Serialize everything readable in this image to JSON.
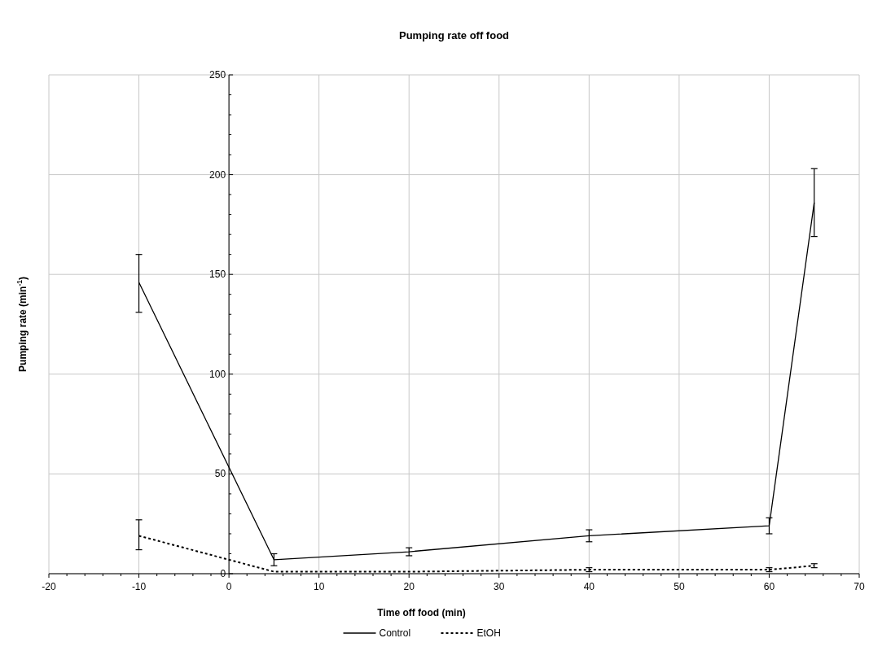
{
  "chart_data": {
    "type": "line",
    "title": "Pumping rate off food",
    "xlabel": "Time off food (min)",
    "ylabel": "Pumping rate (min$^{-1}$)",
    "x": [
      -10,
      5,
      20,
      40,
      60,
      65
    ],
    "series": [
      {
        "name": "Control",
        "color": "#000000",
        "values": [
          146,
          7,
          11,
          19,
          24,
          186
        ],
        "errors": [
          [
            131,
            160
          ],
          3,
          2,
          3,
          4,
          [
            169,
            203
          ]
        ],
        "line_style": "solid"
      },
      {
        "name": "EtOH",
        "color": "#000000",
        "values": [
          19,
          1,
          1,
          2,
          2,
          4
        ],
        "errors": [
          [
            12,
            27
          ],
          null,
          null,
          1,
          1,
          1
        ],
        "line_style": "dotted"
      }
    ],
    "xlim": [
      -20,
      70
    ],
    "xticks": [
      -20,
      {
        "value": -18,
        "label": null
      },
      {
        "value": -16,
        "label": null
      },
      {
        "value": -14,
        "label": null
      },
      {
        "value": -12,
        "label": null
      },
      -10,
      {
        "value": -8,
        "label": null
      },
      {
        "value": -6,
        "label": null
      },
      {
        "value": -4,
        "label": null
      },
      {
        "value": -2,
        "label": null
      },
      0,
      {
        "value": 2,
        "label": null
      },
      {
        "value": 4,
        "label": null
      },
      {
        "value": 6,
        "label": null
      },
      {
        "value": 8,
        "label": null
      },
      10,
      {
        "value": 12,
        "label": null
      },
      {
        "value": 14,
        "label": null
      },
      {
        "value": 16,
        "label": null
      },
      {
        "value": 18,
        "label": null
      },
      20,
      {
        "value": 22,
        "label": null
      },
      {
        "value": 24,
        "label": null
      },
      {
        "value": 26,
        "label": null
      },
      {
        "value": 28,
        "label": null
      },
      30,
      {
        "value": 32,
        "label": null
      },
      {
        "value": 34,
        "label": null
      },
      {
        "value": 36,
        "label": null
      },
      {
        "value": 38,
        "label": null
      },
      40,
      {
        "value": 42,
        "label": null
      },
      {
        "value": 44,
        "label": null
      },
      {
        "value": 46,
        "label": null
      },
      {
        "value": 48,
        "label": null
      },
      50,
      {
        "value": 52,
        "label": null
      },
      {
        "value": 54,
        "label": null
      },
      {
        "value": 56,
        "label": null
      },
      {
        "value": 58,
        "label": null
      },
      60,
      {
        "value": 62,
        "label": null
      },
      {
        "value": 64,
        "label": null
      },
      {
        "value": 66,
        "label": null
      },
      {
        "value": 68,
        "label": null
      },
      70
    ],
    "ylim": [
      0,
      250
    ],
    "yticks": [
      0,
      {
        "value": 10,
        "label": null
      },
      {
        "value": 20,
        "label": null
      },
      {
        "value": 30,
        "label": null
      },
      {
        "value": 40,
        "label": null
      },
      50,
      {
        "value": 60,
        "label": null
      },
      {
        "value": 70,
        "label": null
      },
      {
        "value": 80,
        "label": null
      },
      {
        "value": 90,
        "label": null
      },
      100,
      {
        "value": 110,
        "label": null
      },
      {
        "value": 120,
        "label": null
      },
      {
        "value": 130,
        "label": null
      },
      {
        "value": 140,
        "label": null
      },
      150,
      {
        "value": 160,
        "label": null
      },
      {
        "value": 170,
        "label": null
      },
      {
        "value": 180,
        "label": null
      },
      {
        "value": 190,
        "label": null
      },
      200,
      {
        "value": 210,
        "label": null
      },
      {
        "value": 220,
        "label": null
      },
      {
        "value": 230,
        "label": null
      },
      {
        "value": 240,
        "label": null
      },
      250
    ],
    "grid": true,
    "legend": "bottom",
    "marker": "none"
  }
}
